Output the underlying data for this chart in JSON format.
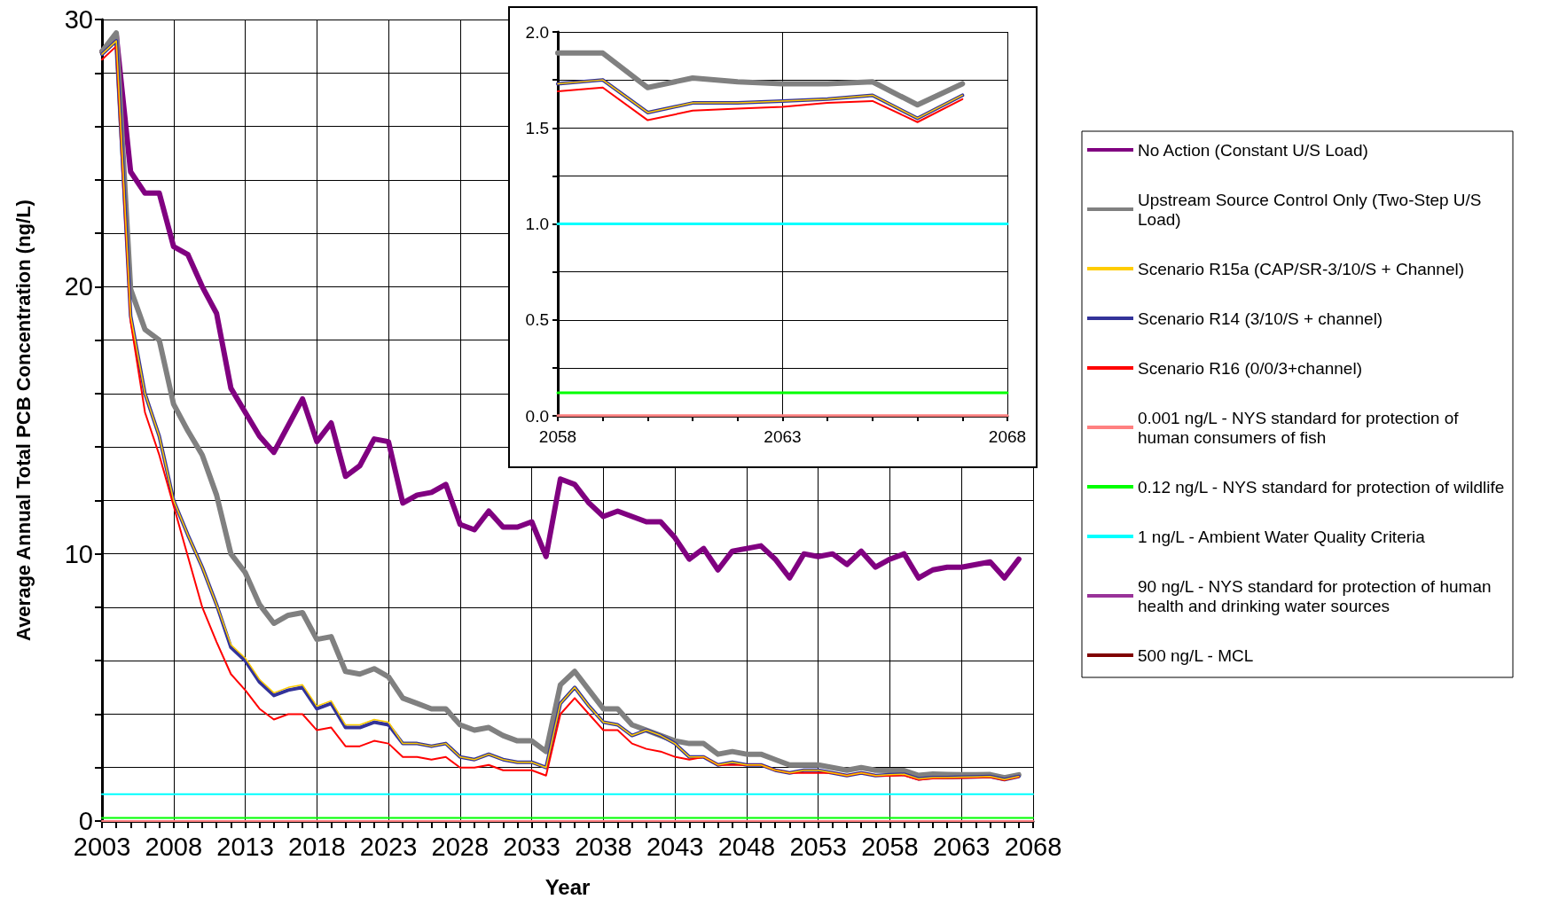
{
  "chart_data": [
    {
      "type": "line",
      "xlabel": "Year",
      "ylabel": "Average Annual Total PCB Concentration (ng/L)",
      "xlim": [
        2003,
        2068
      ],
      "ylim": [
        0,
        30
      ],
      "xticks": [
        2003,
        {
          "value": 2004,
          "label": null
        },
        {
          "value": 2005,
          "label": null
        },
        {
          "value": 2006,
          "label": null
        },
        {
          "value": 2007,
          "label": null
        },
        2008,
        {
          "value": 2009,
          "label": null
        },
        {
          "value": 2010,
          "label": null
        },
        {
          "value": 2011,
          "label": null
        },
        {
          "value": 2012,
          "label": null
        },
        2013,
        {
          "value": 2014,
          "label": null
        },
        {
          "value": 2015,
          "label": null
        },
        {
          "value": 2016,
          "label": null
        },
        {
          "value": 2017,
          "label": null
        },
        2018,
        {
          "value": 2019,
          "label": null
        },
        {
          "value": 2020,
          "label": null
        },
        {
          "value": 2021,
          "label": null
        },
        {
          "value": 2022,
          "label": null
        },
        2023,
        {
          "value": 2024,
          "label": null
        },
        {
          "value": 2025,
          "label": null
        },
        {
          "value": 2026,
          "label": null
        },
        {
          "value": 2027,
          "label": null
        },
        2028,
        {
          "value": 2029,
          "label": null
        },
        {
          "value": 2030,
          "label": null
        },
        {
          "value": 2031,
          "label": null
        },
        {
          "value": 2032,
          "label": null
        },
        2033,
        {
          "value": 2034,
          "label": null
        },
        {
          "value": 2035,
          "label": null
        },
        {
          "value": 2036,
          "label": null
        },
        {
          "value": 2037,
          "label": null
        },
        2038,
        {
          "value": 2039,
          "label": null
        },
        {
          "value": 2040,
          "label": null
        },
        {
          "value": 2041,
          "label": null
        },
        {
          "value": 2042,
          "label": null
        },
        2043,
        {
          "value": 2044,
          "label": null
        },
        {
          "value": 2045,
          "label": null
        },
        {
          "value": 2046,
          "label": null
        },
        {
          "value": 2047,
          "label": null
        },
        2048,
        {
          "value": 2049,
          "label": null
        },
        {
          "value": 2050,
          "label": null
        },
        {
          "value": 2051,
          "label": null
        },
        {
          "value": 2052,
          "label": null
        },
        2053,
        {
          "value": 2054,
          "label": null
        },
        {
          "value": 2055,
          "label": null
        },
        {
          "value": 2056,
          "label": null
        },
        {
          "value": 2057,
          "label": null
        },
        2058,
        {
          "value": 2059,
          "label": null
        },
        {
          "value": 2060,
          "label": null
        },
        {
          "value": 2061,
          "label": null
        },
        {
          "value": 2062,
          "label": null
        },
        2063,
        {
          "value": 2064,
          "label": null
        },
        {
          "value": 2065,
          "label": null
        },
        {
          "value": 2066,
          "label": null
        },
        {
          "value": 2067,
          "label": null
        },
        2068
      ],
      "yticks": [
        0,
        {
          "value": 2,
          "label": null
        },
        {
          "value": 4,
          "label": null
        },
        {
          "value": 6,
          "label": null
        },
        {
          "value": 8,
          "label": null
        },
        10,
        {
          "value": 12,
          "label": null
        },
        {
          "value": 14,
          "label": null
        },
        {
          "value": 16,
          "label": null
        },
        {
          "value": 18,
          "label": null
        },
        20,
        {
          "value": 22,
          "label": null
        },
        {
          "value": 24,
          "label": null
        },
        {
          "value": 26,
          "label": null
        },
        {
          "value": 28,
          "label": null
        },
        30
      ],
      "grid": true,
      "legend": "right",
      "x": [
        2003,
        2004,
        2005,
        2006,
        2007,
        2008,
        2009,
        2010,
        2011,
        2012,
        2013,
        2014,
        2015,
        2016,
        2017,
        2018,
        2019,
        2020,
        2021,
        2022,
        2023,
        2024,
        2025,
        2026,
        2027,
        2028,
        2029,
        2030,
        2031,
        2032,
        2033,
        2034,
        2035,
        2036,
        2037,
        2038,
        2039,
        2040,
        2041,
        2042,
        2043,
        2044,
        2045,
        2046,
        2047,
        2048,
        2049,
        2050,
        2051,
        2052,
        2053,
        2054,
        2055,
        2056,
        2057,
        2058,
        2059,
        2060,
        2061,
        2062,
        2063,
        2064,
        2065,
        2066,
        2067
      ],
      "series": [
        {
          "name": "No Action (Constant U/S Load)",
          "color": "#800080",
          "values": [
            28.8,
            29.4,
            24.3,
            23.5,
            23.5,
            21.5,
            21.2,
            20.0,
            19.0,
            16.2,
            15.3,
            14.4,
            13.8,
            14.8,
            15.8,
            14.2,
            14.9,
            12.9,
            13.3,
            14.3,
            14.2,
            11.9,
            12.2,
            12.3,
            12.6,
            11.1,
            10.9,
            11.6,
            11.0,
            11.0,
            11.2,
            9.9,
            12.8,
            12.6,
            11.9,
            11.4,
            11.6,
            11.4,
            11.2,
            11.2,
            10.6,
            9.8,
            10.2,
            9.4,
            10.1,
            10.2,
            10.3,
            9.8,
            9.1,
            10.0,
            9.9,
            10.0,
            9.6,
            10.1,
            9.5,
            9.8,
            10.0,
            9.1,
            9.4,
            9.5,
            9.5,
            9.6,
            9.7,
            9.1,
            9.8
          ]
        },
        {
          "name": "Upstream Source Control Only (Two-Step U/S Load)",
          "color": "#808080",
          "values": [
            28.8,
            29.5,
            19.9,
            18.4,
            18.0,
            15.6,
            14.6,
            13.7,
            12.2,
            10.0,
            9.3,
            8.1,
            7.4,
            7.7,
            7.8,
            6.8,
            6.9,
            5.6,
            5.5,
            5.7,
            5.4,
            4.6,
            4.4,
            4.2,
            4.2,
            3.6,
            3.4,
            3.5,
            3.2,
            3.0,
            3.0,
            2.6,
            5.1,
            5.6,
            4.9,
            4.2,
            4.2,
            3.6,
            3.4,
            3.2,
            3.0,
            2.9,
            2.9,
            2.5,
            2.6,
            2.5,
            2.5,
            2.3,
            2.1,
            2.1,
            2.1,
            2.0,
            1.9,
            2.0,
            1.9,
            1.89,
            1.89,
            1.71,
            1.76,
            1.74,
            1.73,
            1.73,
            1.74,
            1.62,
            1.73
          ]
        },
        {
          "name": "Scenario R15a (CAP/SR-3/10/S + Channel)",
          "color": "#ffcc00",
          "values": [
            28.7,
            29.2,
            18.9,
            16.0,
            14.4,
            12.0,
            10.7,
            9.5,
            8.1,
            6.6,
            6.1,
            5.3,
            4.8,
            5.0,
            5.1,
            4.3,
            4.5,
            3.6,
            3.6,
            3.8,
            3.7,
            2.9,
            2.9,
            2.8,
            2.9,
            2.4,
            2.3,
            2.5,
            2.3,
            2.2,
            2.2,
            2.0,
            4.4,
            5.0,
            4.3,
            3.7,
            3.6,
            3.2,
            3.4,
            3.2,
            2.9,
            2.4,
            2.4,
            2.1,
            2.2,
            2.1,
            2.1,
            1.9,
            1.8,
            1.9,
            1.9,
            1.8,
            1.7,
            1.8,
            1.7,
            1.73,
            1.75,
            1.58,
            1.63,
            1.63,
            1.64,
            1.65,
            1.67,
            1.55,
            1.67
          ]
        },
        {
          "name": "Scenario R14 (3/10/S + channel)",
          "color": "#333399",
          "values": [
            28.7,
            29.2,
            18.9,
            16.0,
            14.4,
            12.0,
            10.7,
            9.5,
            8.1,
            6.5,
            6.0,
            5.2,
            4.7,
            4.9,
            5.0,
            4.2,
            4.4,
            3.5,
            3.5,
            3.7,
            3.6,
            2.9,
            2.9,
            2.8,
            2.9,
            2.4,
            2.3,
            2.5,
            2.3,
            2.2,
            2.2,
            2.0,
            4.4,
            5.0,
            4.3,
            3.7,
            3.6,
            3.2,
            3.4,
            3.2,
            2.9,
            2.4,
            2.4,
            2.1,
            2.2,
            2.1,
            2.1,
            1.9,
            1.8,
            1.9,
            1.9,
            1.8,
            1.7,
            1.8,
            1.7,
            1.73,
            1.75,
            1.58,
            1.63,
            1.63,
            1.64,
            1.65,
            1.67,
            1.55,
            1.67
          ]
        },
        {
          "name": "Scenario R16 (0/0/3+channel)",
          "color": "#ff0000",
          "values": [
            28.5,
            29.0,
            18.7,
            15.3,
            13.7,
            11.8,
            9.9,
            8.0,
            6.7,
            5.5,
            4.9,
            4.2,
            3.8,
            4.0,
            4.0,
            3.4,
            3.5,
            2.8,
            2.8,
            3.0,
            2.9,
            2.4,
            2.4,
            2.3,
            2.4,
            2.0,
            2.0,
            2.1,
            1.9,
            1.9,
            1.9,
            1.7,
            4.0,
            4.6,
            4.0,
            3.4,
            3.4,
            2.9,
            2.7,
            2.6,
            2.4,
            2.3,
            2.4,
            2.1,
            2.1,
            2.1,
            2.1,
            1.9,
            1.8,
            1.8,
            1.8,
            1.8,
            1.7,
            1.8,
            1.7,
            1.69,
            1.71,
            1.54,
            1.59,
            1.6,
            1.61,
            1.63,
            1.64,
            1.53,
            1.65
          ]
        },
        {
          "name": "0.001 ng/L - NYS standard for protection of human consumers of fish",
          "color": "#ff8080",
          "x": [
            2003,
            2068
          ],
          "values": [
            0.001,
            0.001
          ]
        },
        {
          "name": "0.12 ng/L - NYS standard for protection of wildlife",
          "color": "#00ff00",
          "x": [
            2003,
            2068
          ],
          "values": [
            0.12,
            0.12
          ]
        },
        {
          "name": "1 ng/L - Ambient Water Quality Criteria",
          "color": "#00ffff",
          "x": [
            2003,
            2068
          ],
          "values": [
            1,
            1
          ]
        },
        {
          "name": "90 ng/L - NYS standard for protection of human health and drinking water sources",
          "color": "#993399",
          "values": [
            null,
            null,
            null,
            null,
            null,
            null,
            null,
            null,
            null,
            null,
            null,
            null,
            null,
            null,
            null,
            null,
            null,
            null,
            null,
            null,
            null,
            null,
            null,
            null,
            null,
            null,
            null,
            null,
            null,
            null,
            null,
            null,
            null,
            null,
            null,
            null,
            null,
            null,
            null,
            null,
            null,
            null,
            null,
            null,
            null,
            null,
            null,
            null,
            null,
            null,
            null,
            null,
            null,
            null,
            null,
            null,
            null,
            null,
            null,
            null,
            null,
            null,
            null,
            null,
            null
          ]
        },
        {
          "name": "500 ng/L - MCL",
          "color": "#800000",
          "values": [
            null,
            null,
            null,
            null,
            null,
            null,
            null,
            null,
            null,
            null,
            null,
            null,
            null,
            null,
            null,
            null,
            null,
            null,
            null,
            null,
            null,
            null,
            null,
            null,
            null,
            null,
            null,
            null,
            null,
            null,
            null,
            null,
            null,
            null,
            null,
            null,
            null,
            null,
            null,
            null,
            null,
            null,
            null,
            null,
            null,
            null,
            null,
            null,
            null,
            null,
            null,
            null,
            null,
            null,
            null,
            null,
            null,
            null,
            null,
            null,
            null,
            null,
            null,
            null,
            null
          ]
        }
      ]
    },
    {
      "type": "line",
      "xlim": [
        2058,
        2068
      ],
      "ylim": [
        0,
        2
      ],
      "xticks": [
        2058,
        {
          "value": 2059,
          "label": null
        },
        {
          "value": 2060,
          "label": null
        },
        {
          "value": 2061,
          "label": null
        },
        {
          "value": 2062,
          "label": null
        },
        2063,
        {
          "value": 2064,
          "label": null
        },
        {
          "value": 2065,
          "label": null
        },
        {
          "value": 2066,
          "label": null
        },
        {
          "value": 2067,
          "label": null
        },
        2068
      ],
      "yticks": [
        {
          "value": 0,
          "label": "0.0"
        },
        {
          "value": 0.25,
          "label": null
        },
        {
          "value": 0.5,
          "label": "0.5"
        },
        {
          "value": 0.75,
          "label": null
        },
        {
          "value": 1,
          "label": "1.0"
        },
        {
          "value": 1.25,
          "label": null
        },
        {
          "value": 1.5,
          "label": "1.5"
        },
        {
          "value": 1.75,
          "label": null
        },
        {
          "value": 2,
          "label": "2.0"
        }
      ],
      "grid": true,
      "x": [
        2058,
        2059,
        2060,
        2061,
        2062,
        2063,
        2064,
        2065,
        2066,
        2067
      ],
      "series": [
        {
          "color": "#808080",
          "values": [
            1.89,
            1.89,
            1.71,
            1.76,
            1.74,
            1.73,
            1.73,
            1.74,
            1.62,
            1.73
          ]
        },
        {
          "color": "#ffcc00",
          "values": [
            1.73,
            1.75,
            1.58,
            1.63,
            1.63,
            1.64,
            1.65,
            1.67,
            1.55,
            1.67
          ]
        },
        {
          "color": "#333399",
          "values": [
            1.73,
            1.75,
            1.58,
            1.63,
            1.63,
            1.64,
            1.65,
            1.67,
            1.55,
            1.67
          ]
        },
        {
          "color": "#ff0000",
          "values": [
            1.69,
            1.71,
            1.54,
            1.59,
            1.6,
            1.61,
            1.63,
            1.64,
            1.53,
            1.65
          ]
        },
        {
          "color": "#ff8080",
          "x": [
            2058,
            2068
          ],
          "values": [
            0.001,
            0.001
          ]
        },
        {
          "color": "#00ff00",
          "x": [
            2058,
            2068
          ],
          "values": [
            0.12,
            0.12
          ]
        },
        {
          "color": "#00ffff",
          "x": [
            2058,
            2068
          ],
          "values": [
            1,
            1
          ]
        }
      ]
    }
  ]
}
